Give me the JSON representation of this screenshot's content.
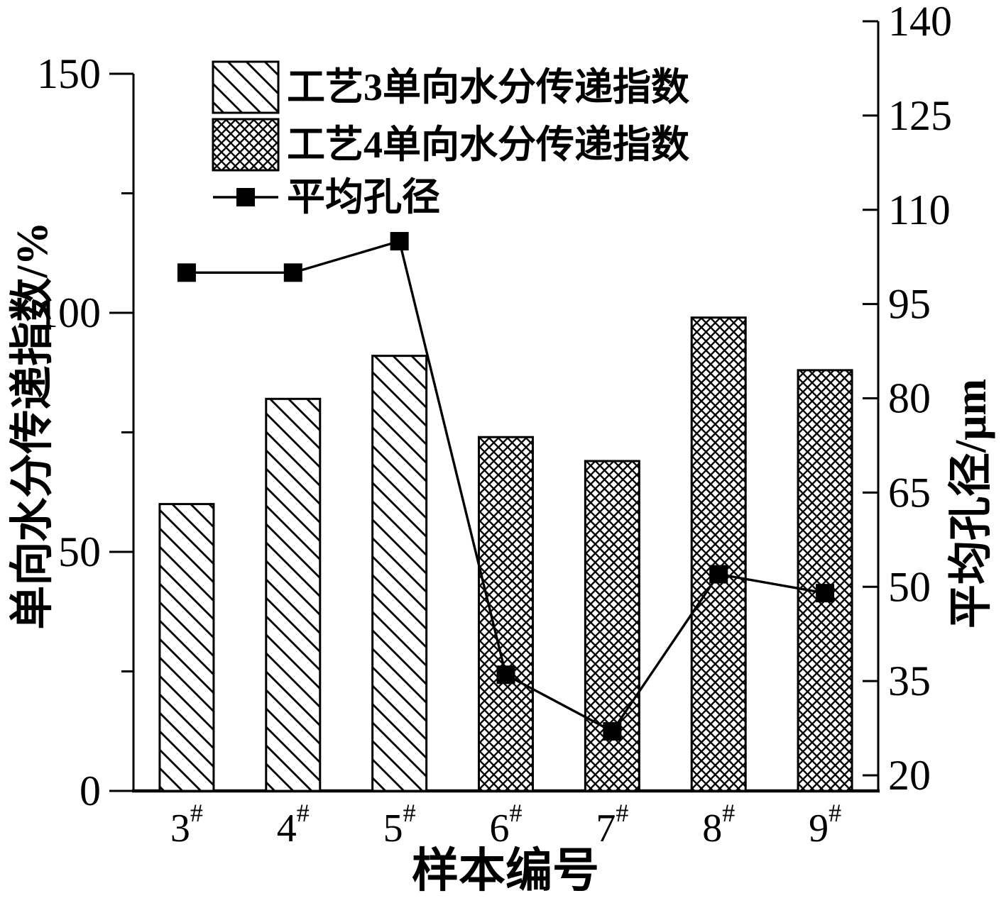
{
  "figure": {
    "background": "#ffffff",
    "foreground": "#000000"
  },
  "chart_data": {
    "type": "bar+line",
    "categories": [
      "3",
      "4",
      "5",
      "6",
      "7",
      "8",
      "9"
    ],
    "category_suffix": "#",
    "x_axis": {
      "label": "样本编号"
    },
    "left_axis": {
      "label": "单向水分传递指数/%",
      "min": 0,
      "max": 150,
      "major_ticks": [
        0,
        50,
        100,
        150
      ],
      "minor_ticks": [
        25,
        75,
        125
      ]
    },
    "right_axis": {
      "label": "平均孔径/μm",
      "min": 20,
      "max": 140,
      "ticks": [
        20,
        35,
        50,
        65,
        80,
        95,
        110,
        125,
        140
      ]
    },
    "bar_series": [
      {
        "name": "工艺3单向水分传递指数",
        "pattern": "diagonal-hatch",
        "values": [
          60,
          82,
          91,
          null,
          null,
          null,
          null
        ]
      },
      {
        "name": "工艺4单向水分传递指数",
        "pattern": "crosshatch",
        "values": [
          null,
          null,
          null,
          74,
          69,
          99,
          88
        ]
      }
    ],
    "line_series": {
      "name": "平均孔径",
      "marker": "filled-square",
      "values": [
        100,
        100,
        105,
        36,
        27,
        52,
        49
      ]
    },
    "legend": {
      "position": "upper-left-inside",
      "entries": [
        "工艺3单向水分传递指数",
        "工艺4单向水分传递指数",
        "平均孔径"
      ]
    },
    "grid": false
  }
}
